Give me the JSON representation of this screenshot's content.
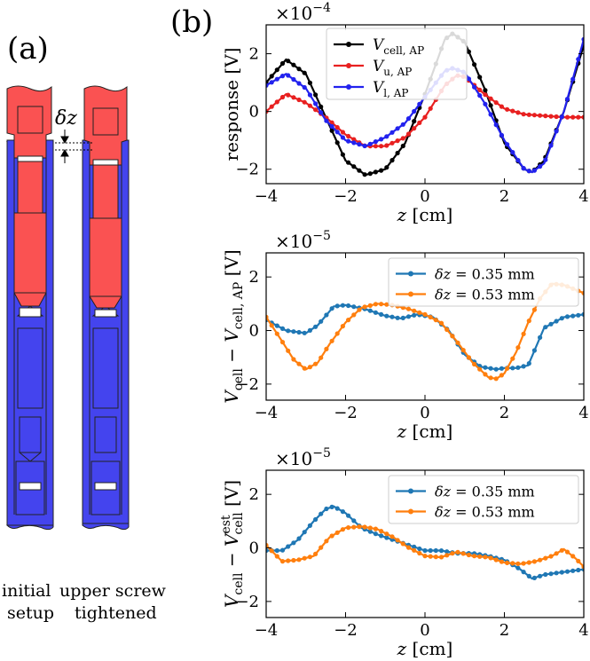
{
  "left_panel": {
    "label": "(a)",
    "delta_label": "δz",
    "captions": [
      {
        "id": "initial",
        "lines": [
          "initial",
          "setup"
        ]
      },
      {
        "id": "tightened",
        "lines": [
          "upper screw",
          "tightened"
        ]
      }
    ],
    "colors": {
      "upper": "#fa5252",
      "lower": "#4242ee",
      "outline": "#222222"
    }
  },
  "right_panel_label": "(b)",
  "chart_data": [
    {
      "type": "line",
      "id": "top",
      "multiplier": {
        "base": "×10",
        "exp": "−4"
      },
      "ylabel": "response [V]",
      "xlabel": {
        "var": "z",
        "unit": " [cm]"
      },
      "xlim": [
        -4,
        4
      ],
      "ylim": [
        -2.5,
        3.0
      ],
      "xticks": [
        -4,
        -2,
        0,
        2,
        4
      ],
      "yticks": [
        -2,
        0,
        2
      ],
      "legend_position": "top-center",
      "series": [
        {
          "name": "V_cell, AP",
          "main": "V",
          "sub": "cell, AP",
          "color": "#000000",
          "x": [
            -4.0,
            -3.5,
            -3.0,
            -2.5,
            -2.0,
            -1.5,
            -1.0,
            -0.5,
            0.0,
            0.5,
            0.7,
            1.0,
            1.5,
            2.0,
            2.5,
            2.7,
            3.0,
            3.5,
            4.0
          ],
          "y": [
            1.0,
            1.8,
            1.3,
            -0.2,
            -1.7,
            -2.2,
            -2.0,
            -1.1,
            0.6,
            2.5,
            2.7,
            2.4,
            0.8,
            -1.1,
            -2.0,
            -2.1,
            -1.7,
            0.0,
            2.3
          ]
        },
        {
          "name": "V_u, AP",
          "main": "V",
          "sub": "u, AP",
          "color": "#e82020",
          "x": [
            -4.0,
            -3.5,
            -3.0,
            -2.5,
            -2.0,
            -1.5,
            -1.0,
            -0.5,
            0.0,
            0.5,
            0.8,
            1.0,
            1.5,
            2.0,
            2.5,
            3.0,
            3.5,
            4.0
          ],
          "y": [
            0.0,
            0.6,
            0.3,
            -0.2,
            -0.8,
            -1.2,
            -1.2,
            -0.9,
            -0.2,
            0.9,
            1.25,
            1.2,
            0.6,
            0.1,
            -0.1,
            -0.15,
            -0.2,
            -0.2
          ]
        },
        {
          "name": "V_l, AP",
          "main": "V",
          "sub": "l, AP",
          "color": "#2222ee",
          "x": [
            -4.0,
            -3.5,
            -3.0,
            -2.5,
            -2.0,
            -1.5,
            -1.0,
            -0.5,
            0.0,
            0.5,
            0.7,
            1.0,
            1.5,
            2.0,
            2.5,
            2.7,
            3.0,
            3.5,
            4.0
          ],
          "y": [
            0.9,
            1.3,
            0.8,
            -0.3,
            -1.0,
            -1.2,
            -0.9,
            -0.4,
            0.5,
            1.4,
            1.5,
            1.35,
            0.3,
            -1.0,
            -2.0,
            -2.1,
            -1.8,
            0.0,
            2.5
          ]
        }
      ]
    },
    {
      "type": "line",
      "id": "middle",
      "multiplier": {
        "base": "×10",
        "exp": "−5"
      },
      "ylabel": {
        "main": "V",
        "sub1": "cell",
        "mid": " − ",
        "sub2": "cell, AP",
        "unit": " [V]"
      },
      "xlabel": {
        "var": "z",
        "unit": " [cm]"
      },
      "xlim": [
        -4,
        4
      ],
      "ylim": [
        -2.6,
        2.9
      ],
      "xticks": [
        -4,
        -2,
        0,
        2,
        4
      ],
      "yticks": [
        -2,
        0,
        2
      ],
      "legend_position": "top-right",
      "series": [
        {
          "name": "δz = 0.35 mm",
          "color": "#1f77b4",
          "x": [
            -4.0,
            -3.5,
            -3.0,
            -2.7,
            -2.3,
            -2.0,
            -1.5,
            -1.0,
            -0.6,
            -0.2,
            0.2,
            0.6,
            1.0,
            1.4,
            1.8,
            2.0,
            2.3,
            2.6,
            3.0,
            3.5,
            4.0
          ],
          "y": [
            0.4,
            0.0,
            -0.1,
            0.2,
            0.9,
            0.95,
            0.8,
            0.55,
            0.45,
            0.6,
            0.5,
            0.0,
            -0.9,
            -1.35,
            -1.45,
            -1.4,
            -1.4,
            -1.3,
            0.1,
            0.5,
            0.6
          ]
        },
        {
          "name": "δz = 0.53 mm",
          "color": "#ff7f0e",
          "x": [
            -4.0,
            -3.6,
            -3.3,
            -3.0,
            -2.7,
            -2.4,
            -2.0,
            -1.6,
            -1.2,
            -0.8,
            -0.4,
            0.0,
            0.4,
            0.8,
            1.2,
            1.6,
            1.8,
            2.0,
            2.3,
            2.6,
            2.9,
            3.2,
            3.5,
            4.0
          ],
          "y": [
            0.5,
            -0.4,
            -1.1,
            -1.45,
            -1.2,
            -0.5,
            0.3,
            0.85,
            1.0,
            0.95,
            0.8,
            0.6,
            0.3,
            -0.4,
            -1.2,
            -1.75,
            -1.8,
            -1.6,
            -0.8,
            0.3,
            1.2,
            1.75,
            1.7,
            1.4
          ]
        }
      ]
    },
    {
      "type": "line",
      "id": "bottom",
      "multiplier": {
        "base": "×10",
        "exp": "−5"
      },
      "ylabel": {
        "main": "V",
        "sub1": "cell",
        "mid": " − ",
        "sub2": "cell",
        "sup2": "est",
        "unit": " [V]"
      },
      "xlabel": {
        "var": "z",
        "unit": " [cm]"
      },
      "xlim": [
        -4,
        4
      ],
      "ylim": [
        -2.6,
        2.9
      ],
      "xticks": [
        -4,
        -2,
        0,
        2,
        4
      ],
      "yticks": [
        -2,
        0,
        2
      ],
      "legend_position": "top-right",
      "series": [
        {
          "name": "δz = 0.35 mm",
          "color": "#1f77b4",
          "x": [
            -4.0,
            -3.6,
            -3.2,
            -2.8,
            -2.5,
            -2.3,
            -2.0,
            -1.6,
            -1.2,
            -0.8,
            -0.4,
            0.0,
            0.4,
            0.8,
            1.2,
            1.6,
            2.0,
            2.4,
            2.7,
            3.0,
            3.5,
            4.0
          ],
          "y": [
            -0.1,
            -0.1,
            0.3,
            1.0,
            1.45,
            1.55,
            1.3,
            0.75,
            0.5,
            0.3,
            0.1,
            -0.1,
            -0.1,
            -0.2,
            -0.2,
            -0.3,
            -0.45,
            -0.8,
            -1.15,
            -1.0,
            -0.9,
            -0.8
          ]
        },
        {
          "name": "δz = 0.53 mm",
          "color": "#ff7f0e",
          "x": [
            -4.0,
            -3.6,
            -3.2,
            -2.8,
            -2.4,
            -2.0,
            -1.6,
            -1.2,
            -0.8,
            -0.4,
            0.0,
            0.4,
            0.8,
            1.2,
            1.6,
            2.0,
            2.4,
            2.8,
            3.2,
            3.5,
            3.8,
            4.0
          ],
          "y": [
            0.1,
            -0.5,
            -0.45,
            -0.3,
            0.4,
            0.75,
            0.8,
            0.7,
            0.4,
            0.0,
            -0.3,
            -0.35,
            -0.15,
            -0.3,
            -0.35,
            -0.55,
            -0.6,
            -0.5,
            -0.3,
            -0.05,
            -0.4,
            -0.7
          ]
        }
      ]
    }
  ]
}
